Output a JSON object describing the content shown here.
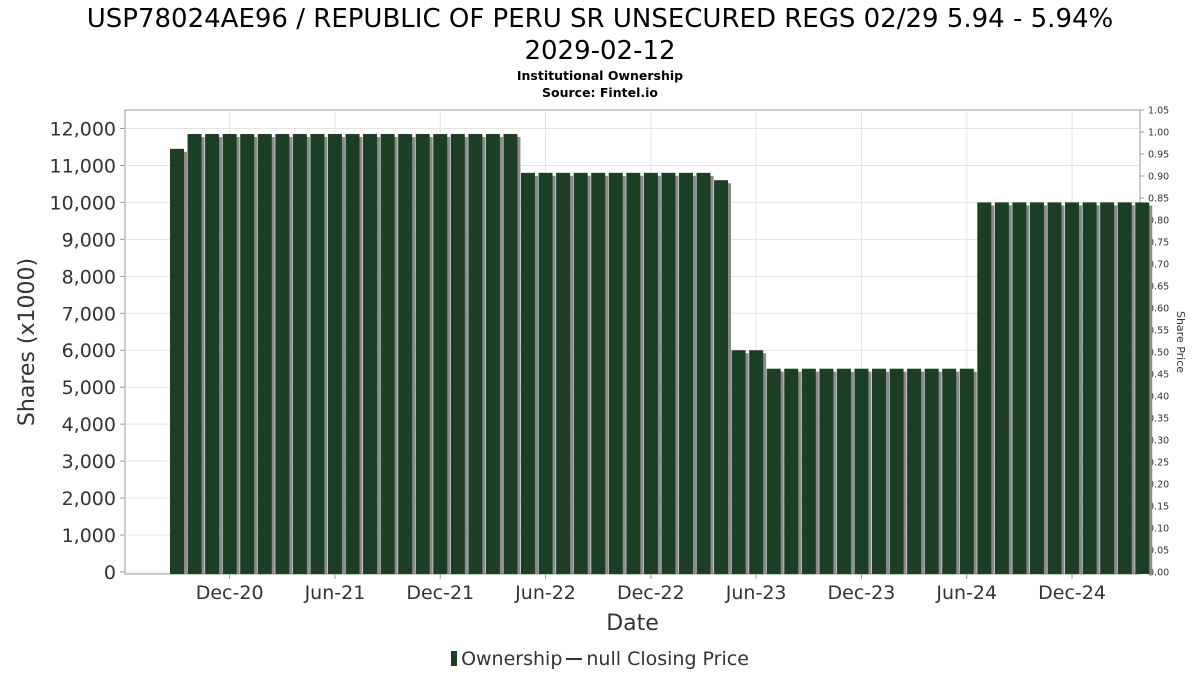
{
  "chart_data": {
    "type": "bar",
    "title": "USP78024AE96 / REPUBLIC OF PERU SR UNSECURED REGS 02/29 5.94 - 5.94% 2029-02-12",
    "title_lines": [
      "USP78024AE96 / REPUBLIC OF PERU SR UNSECURED REGS 02/29 5.94 - 5.94%",
      "2029-02-12"
    ],
    "subtitle": "Institutional Ownership",
    "source": "Source: Fintel.io",
    "xlabel": "Date",
    "ylabel": "Shares (x1000)",
    "ylabel_right": "Share Price",
    "ylim": [
      0,
      12500
    ],
    "ylim_right": [
      0,
      1.05
    ],
    "y_ticks": [
      "0",
      "1,000",
      "2,000",
      "3,000",
      "4,000",
      "5,000",
      "6,000",
      "7,000",
      "8,000",
      "9,000",
      "10,000",
      "11,000",
      "12,000"
    ],
    "y_tick_values": [
      0,
      1000,
      2000,
      3000,
      4000,
      5000,
      6000,
      7000,
      8000,
      9000,
      10000,
      11000,
      12000
    ],
    "y_right_ticks": [
      "0.00",
      "0.05",
      "0.10",
      "0.15",
      "0.20",
      "0.25",
      "0.30",
      "0.35",
      "0.40",
      "0.45",
      "0.50",
      "0.55",
      "0.60",
      "0.65",
      "0.70",
      "0.75",
      "0.80",
      "0.85",
      "0.90",
      "0.95",
      "1.00",
      "1.05"
    ],
    "x_ticks": [
      "Dec-20",
      "Jun-21",
      "Dec-21",
      "Jun-22",
      "Dec-22",
      "Jun-23",
      "Dec-23",
      "Jun-24",
      "Dec-24"
    ],
    "x_tick_index": [
      3,
      9,
      15,
      21,
      27,
      33,
      39,
      45,
      51
    ],
    "series": [
      {
        "name": "Ownership",
        "color": "#1c3f24",
        "values": [
          11450,
          11850,
          11850,
          11850,
          11850,
          11850,
          11850,
          11850,
          11850,
          11850,
          11850,
          11850,
          11850,
          11850,
          11850,
          11850,
          11850,
          11850,
          11850,
          11850,
          10800,
          10800,
          10800,
          10800,
          10800,
          10800,
          10800,
          10800,
          10800,
          10800,
          10800,
          10600,
          6000,
          6000,
          5500,
          5500,
          5500,
          5500,
          5500,
          5500,
          5500,
          5500,
          5500,
          5500,
          5500,
          5500,
          10000,
          10000,
          10000,
          10000,
          10000,
          10000,
          10000,
          10000,
          10000,
          10000
        ]
      }
    ],
    "grid": true,
    "legend_position": "bottom",
    "legend": [
      "Ownership",
      "null Closing Price"
    ]
  }
}
